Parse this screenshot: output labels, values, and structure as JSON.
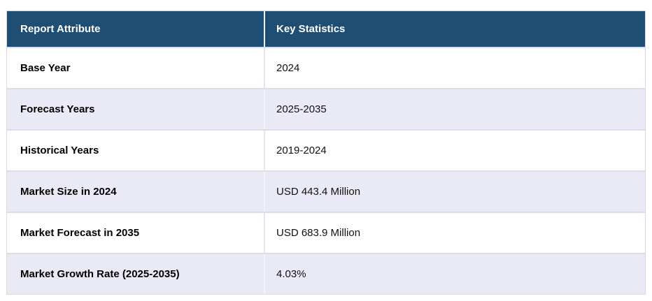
{
  "table": {
    "header": {
      "attribute_label": "Report Attribute",
      "statistics_label": "Key Statistics"
    },
    "rows": [
      {
        "attribute": "Base Year",
        "value": "2024"
      },
      {
        "attribute": "Forecast Years",
        "value": "2025-2035"
      },
      {
        "attribute": "Historical Years",
        "value": "2019-2024"
      },
      {
        "attribute": "Market Size in 2024",
        "value": "USD 443.4 Million"
      },
      {
        "attribute": "Market Forecast in 2035",
        "value": "USD 683.9 Million"
      },
      {
        "attribute": "Market Growth Rate (2025-2035)",
        "value": "4.03%"
      }
    ],
    "colors": {
      "header_bg": "#1f4e74",
      "header_text": "#ffffff",
      "row_alt_bg": "#e9eaf5",
      "row_bg": "#ffffff",
      "row_border": "#dcdde6"
    }
  }
}
